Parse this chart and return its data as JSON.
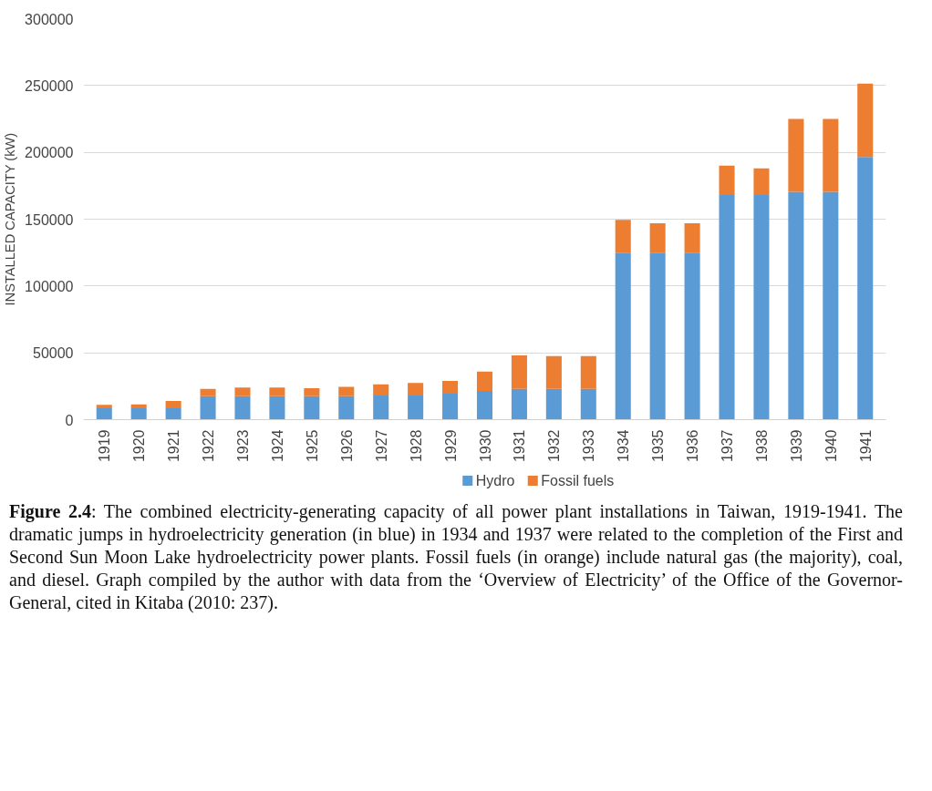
{
  "chart_data": {
    "type": "bar",
    "stacked": true,
    "ylabel": "INSTALLED CAPACITY (kW)",
    "categories": [
      "1919",
      "1920",
      "1921",
      "1922",
      "1923",
      "1924",
      "1925",
      "1926",
      "1927",
      "1928",
      "1929",
      "1930",
      "1931",
      "1932",
      "1933",
      "1934",
      "1935",
      "1936",
      "1937",
      "1938",
      "1939",
      "1940",
      "1941"
    ],
    "series": [
      {
        "name": "Hydro",
        "color": "#5b9bd5",
        "values": [
          8500,
          8500,
          8500,
          17500,
          17500,
          17500,
          17500,
          17500,
          18000,
          18000,
          19500,
          21500,
          23000,
          23000,
          23000,
          125000,
          125000,
          125000,
          168000,
          168000,
          170500,
          170500,
          196500
        ]
      },
      {
        "name": "Fossil fuels",
        "color": "#ed7d31",
        "values": [
          2500,
          3000,
          5500,
          5500,
          6500,
          6500,
          6000,
          7000,
          8500,
          9500,
          9500,
          14500,
          25000,
          24500,
          24500,
          24500,
          22000,
          22000,
          22000,
          20000,
          54500,
          54500,
          55000
        ]
      }
    ],
    "ylim": [
      0,
      300000
    ],
    "yticks": [
      0,
      50000,
      100000,
      150000,
      200000,
      250000,
      300000
    ],
    "grid": "y",
    "legend": "bottom",
    "annotations": [
      "Figure 2.4: The combined electricity-generating capacity of all power plant installations in Taiwan, 1919-1941. The dramatic jumps in hydroelectricity generation (in blue) in 1934 and 1937 were related to the completion of the First and Second Sun Moon Lake hydroelectricity power plants. Fossil fuels (in orange) include natural gas (the majority), coal, and diesel. Graph compiled by the author with data from the ‘Overview of Electricity’ of the Office of the Governor-General, cited in Kitaba (2010: 237)."
    ]
  }
}
